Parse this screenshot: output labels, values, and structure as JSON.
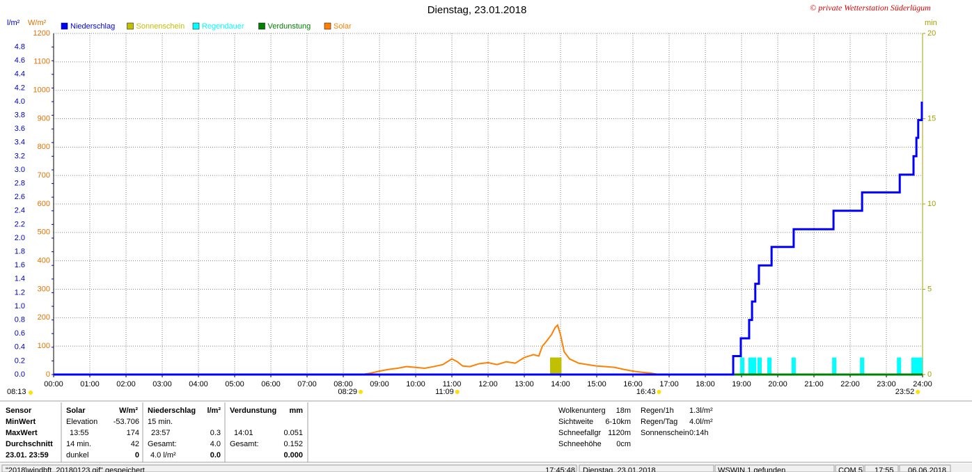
{
  "chart_data": {
    "type": "line",
    "title": "Dienstag, 23.01.2018",
    "subtitle": "© private Wetterstation Süderlügum",
    "y_label": "l/m²",
    "y3_label": "W/m²",
    "y2_label": "min",
    "xlim": [
      0,
      24
    ],
    "xticks": [
      {
        "value": 0,
        "label": "00:00"
      },
      {
        "value": 1,
        "label": "01:00"
      },
      {
        "value": 2,
        "label": "02:00"
      },
      {
        "value": 3,
        "label": "03:00"
      },
      {
        "value": 4,
        "label": "04:00"
      },
      {
        "value": 5,
        "label": "05:00"
      },
      {
        "value": 6,
        "label": "06:00"
      },
      {
        "value": 7,
        "label": "07:00"
      },
      {
        "value": 8,
        "label": "08:00"
      },
      {
        "value": 9,
        "label": "09:00"
      },
      {
        "value": 10,
        "label": "10:00"
      },
      {
        "value": 11,
        "label": "11:00"
      },
      {
        "value": 12,
        "label": "12:00"
      },
      {
        "value": 13,
        "label": "13:00"
      },
      {
        "value": 14,
        "label": "14:00"
      },
      {
        "value": 15,
        "label": "15:00"
      },
      {
        "value": 16,
        "label": "16:00"
      },
      {
        "value": 17,
        "label": "17:00"
      },
      {
        "value": 18,
        "label": "18:00"
      },
      {
        "value": 19,
        "label": "19:00"
      },
      {
        "value": 20,
        "label": "20:00"
      },
      {
        "value": 21,
        "label": "21:00"
      },
      {
        "value": 22,
        "label": "22:00"
      },
      {
        "value": 23,
        "label": "23:00"
      },
      {
        "value": 24,
        "label": "24:00"
      }
    ],
    "ylim": [
      0,
      5
    ],
    "yticks": [
      {
        "value": 0,
        "label": "0.0"
      },
      0.2,
      0.4,
      0.6,
      0.8,
      {
        "value": 1,
        "label": "1.0"
      },
      1.2,
      1.4,
      1.6,
      1.8,
      {
        "value": 2,
        "label": "2.0"
      },
      2.2,
      2.4,
      2.6,
      2.8,
      {
        "value": 3,
        "label": "3.0"
      },
      3.2,
      3.4,
      3.6,
      3.8,
      {
        "value": 4,
        "label": "4.0"
      },
      4.2,
      4.4,
      4.6,
      4.8
    ],
    "y3lim": [
      0,
      1200
    ],
    "y3ticks": [
      0,
      100,
      200,
      300,
      400,
      500,
      600,
      700,
      800,
      900,
      1000,
      1100,
      1200
    ],
    "y2lim": [
      0,
      20
    ],
    "y2ticks": [
      0,
      5,
      10,
      15,
      20
    ],
    "grid": true,
    "series": [
      {
        "name": "Niederschlag",
        "color": "#0000ff",
        "type": "line",
        "axis": "y",
        "x": [
          0,
          18.77,
          18.77,
          18.98,
          18.98,
          19.21,
          19.21,
          19.29,
          19.29,
          19.38,
          19.38,
          19.48,
          19.48,
          19.83,
          19.83,
          20.44,
          20.44,
          21.54,
          21.54,
          22.33,
          22.33,
          23.37,
          23.37,
          23.75,
          23.75,
          23.83,
          23.83,
          23.88,
          23.88,
          23.98,
          23.98
        ],
        "values": [
          0,
          0,
          0.27,
          0.27,
          0.53,
          0.53,
          0.8,
          0.8,
          1.07,
          1.07,
          1.33,
          1.33,
          1.6,
          1.6,
          1.87,
          1.87,
          2.13,
          2.13,
          2.4,
          2.4,
          2.67,
          2.67,
          2.93,
          2.93,
          3.2,
          3.2,
          3.47,
          3.47,
          3.73,
          3.73,
          4.0
        ]
      },
      {
        "name": "Sonnenschein",
        "color": "#c0c000",
        "type": "bar",
        "axis": "y2",
        "x": [
          13.77,
          13.87,
          13.97
        ],
        "values": [
          1,
          1,
          1
        ]
      },
      {
        "name": "Regendauer",
        "color": "#00ffff",
        "type": "bar",
        "axis": "y2",
        "x": [
          19.02,
          19.25,
          19.35,
          19.5,
          19.77,
          20.44,
          21.56,
          22.33,
          23.35,
          23.75,
          23.85,
          23.94
        ],
        "values": [
          1,
          1,
          1,
          1,
          1,
          1,
          1,
          1,
          1,
          1,
          1,
          1
        ]
      },
      {
        "name": "Verdunstung",
        "color": "#008000",
        "type": "line",
        "axis": "y",
        "x": [
          18.8,
          24
        ],
        "values": [
          0,
          0
        ]
      },
      {
        "name": "Solar",
        "color": "#ff8000",
        "type": "line",
        "axis": "y3",
        "x": [
          8.6,
          8.75,
          9.0,
          9.25,
          9.5,
          9.75,
          10.0,
          10.25,
          10.5,
          10.75,
          11.0,
          11.15,
          11.3,
          11.5,
          11.75,
          12.0,
          12.25,
          12.5,
          12.75,
          13.0,
          13.25,
          13.4,
          13.5,
          13.6,
          13.75,
          13.85,
          13.92,
          14.0,
          14.1,
          14.25,
          14.5,
          14.75,
          15.0,
          15.25,
          15.5,
          15.75,
          16.0,
          16.25,
          16.5,
          16.72
        ],
        "values": [
          2,
          5,
          12,
          18,
          22,
          28,
          25,
          22,
          28,
          35,
          55,
          45,
          30,
          28,
          38,
          42,
          35,
          45,
          40,
          60,
          70,
          65,
          100,
          115,
          140,
          165,
          174,
          140,
          80,
          55,
          40,
          35,
          30,
          28,
          25,
          18,
          12,
          8,
          5,
          0
        ]
      }
    ],
    "annotations": [
      {
        "text": "08:13"
      },
      {
        "text": "08:29",
        "x": 8.48
      },
      {
        "text": "11:09",
        "x": 11.15
      },
      {
        "text": "16:43",
        "x": 16.72
      },
      {
        "text": "23:52",
        "x": 23.87
      }
    ]
  },
  "info_panel": {
    "sensor": {
      "header": "Sensor",
      "rows": [
        "MinWert",
        "MaxWert",
        "Durchschnitt",
        "23.01. 23:59"
      ]
    },
    "solar": {
      "header": "Solar",
      "unit": "W/m²",
      "rows": [
        {
          "label": "Elevation",
          "value": "-53.706"
        },
        {
          "label": "13:55",
          "value": "174"
        },
        {
          "label": "14 min.",
          "value": "42"
        },
        {
          "label": "dunkel",
          "value": "0"
        }
      ]
    },
    "niederschlag": {
      "header": "Niederschlag",
      "unit": "l/m²",
      "rows": [
        {
          "label": "15 min."
        },
        {
          "label": "23:57",
          "value": "0.3"
        },
        {
          "label": "Gesamt:",
          "value": "4.0"
        },
        {
          "label": "4.0 l/m²",
          "value": "0.0"
        }
      ]
    },
    "verdunstung": {
      "header": "Verdunstung",
      "unit": "mm",
      "rows": [
        {
          "label": "14:01",
          "value": "0.051"
        },
        {
          "label": "Gesamt:",
          "value": "0.152"
        },
        {
          "value": "0.000"
        }
      ]
    },
    "weather": [
      {
        "label": "Wolkenunterg",
        "value": "18m"
      },
      {
        "label": "Sichtweite",
        "value": "6-10km"
      },
      {
        "label": "Schneefallgr",
        "value": "1120m"
      },
      {
        "label": "Schneehöhe",
        "value": "0cm"
      }
    ],
    "rain": [
      {
        "label": "Regen/1h",
        "value": "1.3l/m²"
      },
      {
        "label": "Regen/Tag",
        "value": "4.0l/m²"
      },
      {
        "label": "Sonnenschein",
        "value": "0:14h"
      }
    ]
  },
  "status_bar": [
    "\"2018\\windbft_20180123.gif\" gespeichert",
    "17:45:48",
    "Dienstag, 23.01.2018",
    "WSWIN 1 gefunden",
    "COM 5",
    "17:55",
    "06.06.2018"
  ]
}
